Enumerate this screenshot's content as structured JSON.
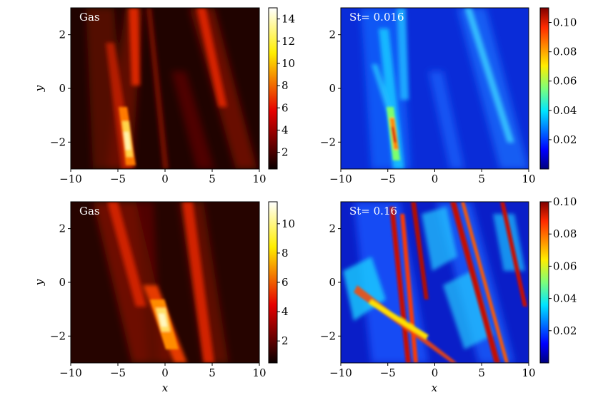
{
  "chart_data": [
    {
      "type": "heatmap",
      "panel_label": "Gas",
      "colormap": "hot",
      "xlim": [
        -10,
        10
      ],
      "ylim": [
        -3,
        3
      ],
      "x_ticks": [
        "−10",
        "−5",
        "0",
        "5",
        "10"
      ],
      "y_ticks": [
        "2",
        "0",
        "−2"
      ],
      "xlabel": "",
      "ylabel": "y",
      "colorbar": {
        "range": [
          0.5,
          15
        ],
        "ticks": [
          "2",
          "4",
          "6",
          "8",
          "10",
          "12",
          "14"
        ]
      }
    },
    {
      "type": "heatmap",
      "panel_label": "St= 0.016",
      "colormap": "jet",
      "xlim": [
        -10,
        10
      ],
      "ylim": [
        -3,
        3
      ],
      "x_ticks": [
        "−10",
        "−5",
        "0",
        "5",
        "10"
      ],
      "y_ticks": [
        "2",
        "0",
        "−2"
      ],
      "xlabel": "",
      "ylabel": "",
      "colorbar": {
        "range": [
          0.0,
          0.11
        ],
        "ticks": [
          "0.02",
          "0.04",
          "0.06",
          "0.08",
          "0.10"
        ]
      }
    },
    {
      "type": "heatmap",
      "panel_label": "Gas",
      "colormap": "hot",
      "xlim": [
        -10,
        10
      ],
      "ylim": [
        -3,
        3
      ],
      "x_ticks": [
        "−10",
        "−5",
        "0",
        "5",
        "10"
      ],
      "y_ticks": [
        "2",
        "0",
        "−2"
      ],
      "xlabel": "x",
      "ylabel": "y",
      "colorbar": {
        "range": [
          0.5,
          11.5
        ],
        "ticks": [
          "2",
          "4",
          "6",
          "8",
          "10"
        ]
      }
    },
    {
      "type": "heatmap",
      "panel_label": "St= 0.16",
      "colormap": "jet",
      "xlim": [
        -10,
        10
      ],
      "ylim": [
        -3,
        3
      ],
      "x_ticks": [
        "−10",
        "−5",
        "0",
        "5",
        "10"
      ],
      "y_ticks": [
        "2",
        "0",
        "−2"
      ],
      "xlabel": "x",
      "ylabel": "",
      "colorbar": {
        "range": [
          0.0,
          0.1
        ],
        "ticks": [
          "0.02",
          "0.04",
          "0.06",
          "0.08",
          "0.10"
        ]
      }
    }
  ]
}
